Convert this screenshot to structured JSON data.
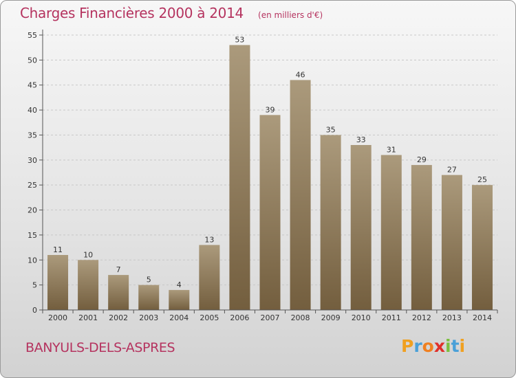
{
  "header": {
    "title": "Charges Financières 2000 à 2014",
    "subtitle": "(en milliers d'€)"
  },
  "footer": {
    "commune": "BANYULS-DELS-ASPRES",
    "logo_letters": [
      "P",
      "r",
      "o",
      "x",
      "i",
      "t",
      "i"
    ],
    "logo_colors": [
      "#f0a020",
      "#4aa0d8",
      "#f08020",
      "#e0302a",
      "#7cc040",
      "#4aa0d8",
      "#f0a020"
    ]
  },
  "colors": {
    "title": "#b5335f",
    "bar_light": "#ab9a7c",
    "bar_dark": "#735e3e",
    "grid": "#c8c8c8"
  },
  "chart_data": {
    "type": "bar",
    "categories": [
      "2000",
      "2001",
      "2002",
      "2003",
      "2004",
      "2005",
      "2006",
      "2007",
      "2008",
      "2009",
      "2010",
      "2011",
      "2012",
      "2013",
      "2014"
    ],
    "values": [
      11,
      10,
      7,
      5,
      4,
      13,
      53,
      39,
      46,
      35,
      33,
      31,
      29,
      27,
      25
    ],
    "ylim": [
      0,
      55
    ],
    "yticks": [
      0,
      5,
      10,
      15,
      20,
      25,
      30,
      35,
      40,
      45,
      50,
      55
    ],
    "grid": "horizontal dashed",
    "data_labels": true
  }
}
